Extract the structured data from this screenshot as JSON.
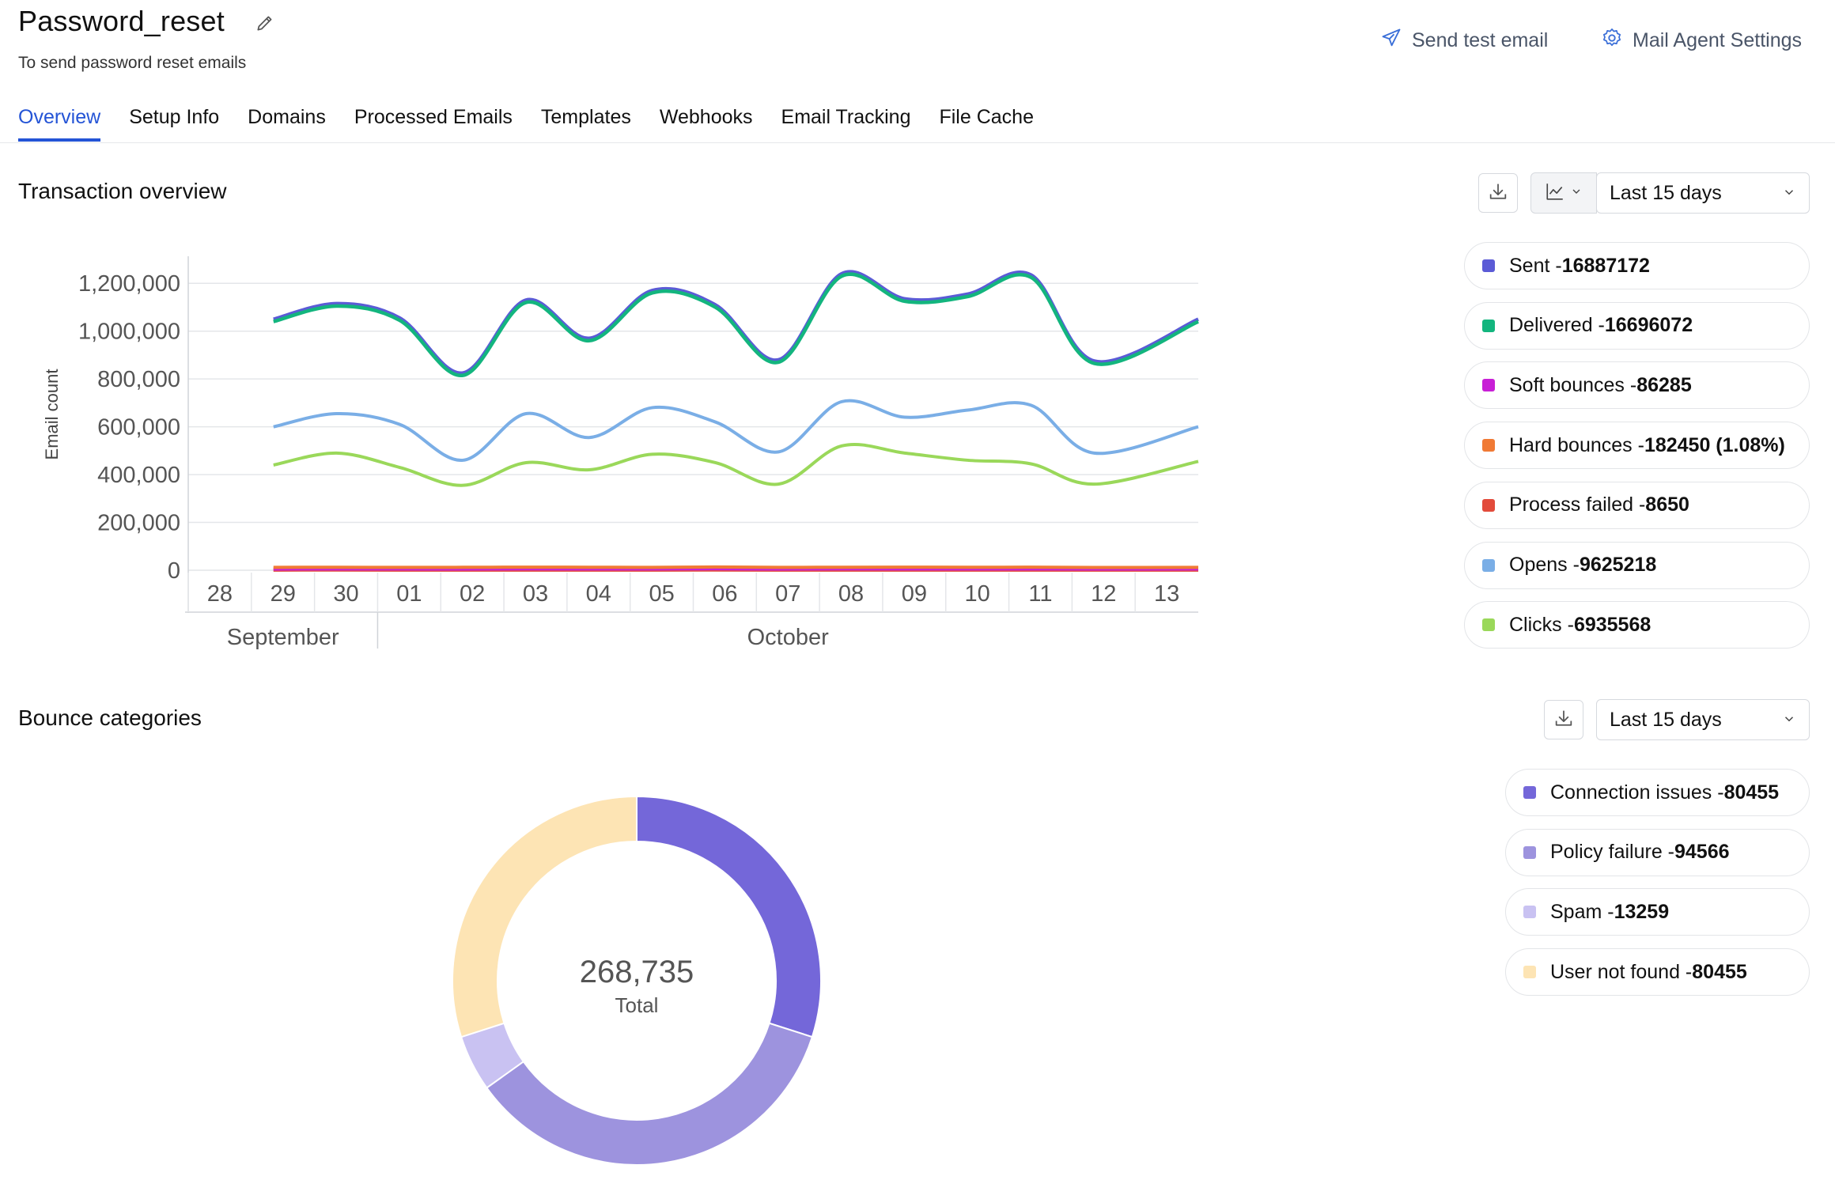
{
  "header": {
    "title": "Password_reset",
    "subtitle": "To send password reset emails",
    "send_test_label": "Send test email",
    "agent_settings_label": "Mail Agent Settings"
  },
  "tabs": [
    {
      "label": "Overview",
      "active": true
    },
    {
      "label": "Setup Info"
    },
    {
      "label": "Domains"
    },
    {
      "label": "Processed Emails"
    },
    {
      "label": "Templates"
    },
    {
      "label": "Webhooks"
    },
    {
      "label": "Email Tracking"
    },
    {
      "label": "File Cache"
    }
  ],
  "transaction": {
    "title": "Transaction overview",
    "range_label": "Last 15 days",
    "legend": [
      {
        "label": "Sent - ",
        "value": "16887172",
        "color": "#5b5bd6"
      },
      {
        "label": "Delivered - ",
        "value": "16696072",
        "color": "#13b57e"
      },
      {
        "label": "Soft bounces - ",
        "value": "86285",
        "color": "#c81fd6"
      },
      {
        "label": "Hard bounces - ",
        "value": "182450 (1.08%)",
        "color": "#f07a35"
      },
      {
        "label": "Process failed - ",
        "value": "8650",
        "color": "#e24b3b"
      },
      {
        "label": "Opens - ",
        "value": "9625218",
        "color": "#7aaee6"
      },
      {
        "label": "Clicks - ",
        "value": "6935568",
        "color": "#9ad85a"
      }
    ]
  },
  "bounce": {
    "title": "Bounce categories",
    "range_label": "Last 15 days",
    "total_value": "268,735",
    "total_label": "Total",
    "legend": [
      {
        "label": "Connection issues - ",
        "value": "80455",
        "color": "#7467d9"
      },
      {
        "label": "Policy failure - ",
        "value": "94566",
        "color": "#9d93de"
      },
      {
        "label": "Spam - ",
        "value": "13259",
        "color": "#c9c2f2"
      },
      {
        "label": "User not found - ",
        "value": "80455",
        "color": "#fde4b4"
      }
    ]
  },
  "chart_data": [
    {
      "type": "line",
      "title": "",
      "xlabel": "",
      "ylabel": "Email count",
      "ylim": [
        0,
        1300000
      ],
      "yticks": [
        "0",
        "200,000",
        "400,000",
        "600,000",
        "800,000",
        "1,000,000",
        "1,200,000"
      ],
      "ytick_values": [
        0,
        200000,
        400000,
        600000,
        800000,
        1000000,
        1200000
      ],
      "x_tick_labels": [
        "28",
        "29",
        "30",
        "01",
        "02",
        "03",
        "04",
        "05",
        "06",
        "07",
        "08",
        "09",
        "10",
        "11",
        "12",
        "13"
      ],
      "month_labels": [
        "September",
        "October"
      ],
      "x": [
        29,
        30,
        1,
        2,
        3,
        4,
        5,
        6,
        7,
        8,
        9,
        10,
        11,
        12,
        13
      ],
      "grid": true,
      "series": [
        {
          "name": "Sent",
          "color": "#5b5bd6",
          "values": [
            1050000,
            1115000,
            1055000,
            825000,
            1130000,
            970000,
            1170000,
            1110000,
            880000,
            1240000,
            1135000,
            1155000,
            1235000,
            875000,
            1050000
          ]
        },
        {
          "name": "Delivered",
          "color": "#13b57e",
          "values": [
            1040000,
            1105000,
            1045000,
            815000,
            1120000,
            960000,
            1160000,
            1100000,
            870000,
            1230000,
            1125000,
            1145000,
            1225000,
            865000,
            1040000
          ]
        },
        {
          "name": "Soft bounces",
          "color": "#c81fd6",
          "values": [
            5000,
            5500,
            5200,
            5000,
            5800,
            5300,
            5500,
            6000,
            5100,
            5600,
            5400,
            5300,
            5500,
            4900,
            5200
          ]
        },
        {
          "name": "Hard bounces",
          "color": "#f07a35",
          "values": [
            12000,
            12500,
            11800,
            12200,
            13000,
            12400,
            12100,
            13500,
            11900,
            12600,
            12800,
            12300,
            12700,
            11500,
            12000
          ]
        },
        {
          "name": "Process failed",
          "color": "#e24b3b",
          "values": [
            600,
            650,
            550,
            580,
            620,
            590,
            600,
            640,
            560,
            610,
            600,
            590,
            620,
            570,
            600
          ]
        },
        {
          "name": "Opens",
          "color": "#7aaee6",
          "values": [
            600000,
            655000,
            610000,
            460000,
            655000,
            555000,
            680000,
            620000,
            495000,
            705000,
            640000,
            670000,
            690000,
            490000,
            600000
          ]
        },
        {
          "name": "Clicks",
          "color": "#9ad85a",
          "values": [
            440000,
            490000,
            430000,
            355000,
            450000,
            420000,
            485000,
            450000,
            360000,
            520000,
            490000,
            460000,
            445000,
            360000,
            455000
          ]
        }
      ]
    },
    {
      "type": "pie",
      "title": "",
      "categories": [
        "Connection issues",
        "Policy failure",
        "Spam",
        "User not found"
      ],
      "values": [
        80455,
        94566,
        13259,
        80455
      ],
      "colors": [
        "#7467d9",
        "#9d93de",
        "#c9c2f2",
        "#fde4b4"
      ]
    }
  ]
}
